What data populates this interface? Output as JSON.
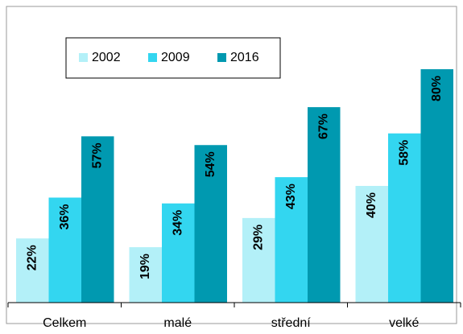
{
  "chart_data": {
    "type": "bar",
    "categories": [
      "Celkem",
      "malé",
      "střední",
      "velké"
    ],
    "series": [
      {
        "name": "2002",
        "color": "#b3f0f8",
        "values": [
          22,
          19,
          29,
          40
        ],
        "value_labels": [
          "22%",
          "19%",
          "29%",
          "40%"
        ]
      },
      {
        "name": "2009",
        "color": "#33d6f0",
        "values": [
          36,
          34,
          43,
          58
        ],
        "value_labels": [
          "36%",
          "34%",
          "43%",
          "58%"
        ]
      },
      {
        "name": "2016",
        "color": "#0099b0",
        "values": [
          57,
          54,
          67,
          80
        ],
        "value_labels": [
          "57%",
          "54%",
          "67%",
          "80%"
        ]
      }
    ],
    "legend": "top-left"
  }
}
